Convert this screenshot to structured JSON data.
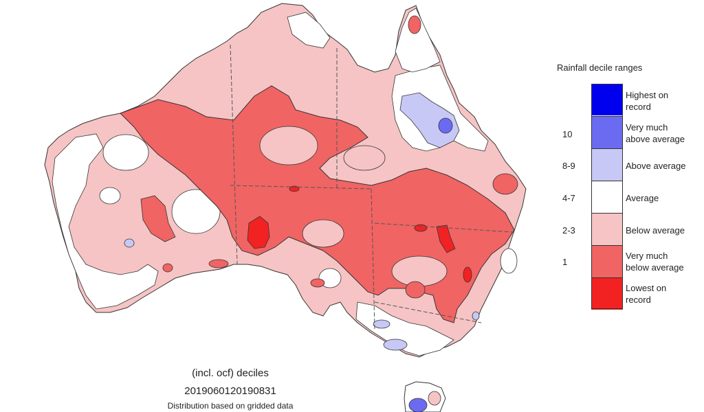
{
  "legend": {
    "title": "Rainfall decile ranges",
    "categories": [
      {
        "label": "Highest on record",
        "lines": [
          "Highest on",
          "record"
        ],
        "range": "",
        "color": "#0000ee"
      },
      {
        "label": "Very much above average",
        "lines": [
          "Very much",
          "above average"
        ],
        "range": "10",
        "color": "#6b6bf2"
      },
      {
        "label": "Above average",
        "lines": [
          "Above average"
        ],
        "range": "8-9",
        "color": "#c8c8f6"
      },
      {
        "label": "Average",
        "lines": [
          "Average"
        ],
        "range": "4-7",
        "color": "#ffffff"
      },
      {
        "label": "Below average",
        "lines": [
          "Below average"
        ],
        "range": "2-3",
        "color": "#f6c4c4"
      },
      {
        "label": "Very much below average",
        "lines": [
          "Very much",
          "below average"
        ],
        "range": "1",
        "color": "#f06464"
      },
      {
        "label": "Lowest on record",
        "lines": [
          "Lowest on",
          "record"
        ],
        "range": "",
        "color": "#f22222"
      }
    ]
  },
  "caption": {
    "line1": "(incl. ocf) deciles",
    "line2": "2019060120190831",
    "line3": "Distribution based on gridded data"
  }
}
